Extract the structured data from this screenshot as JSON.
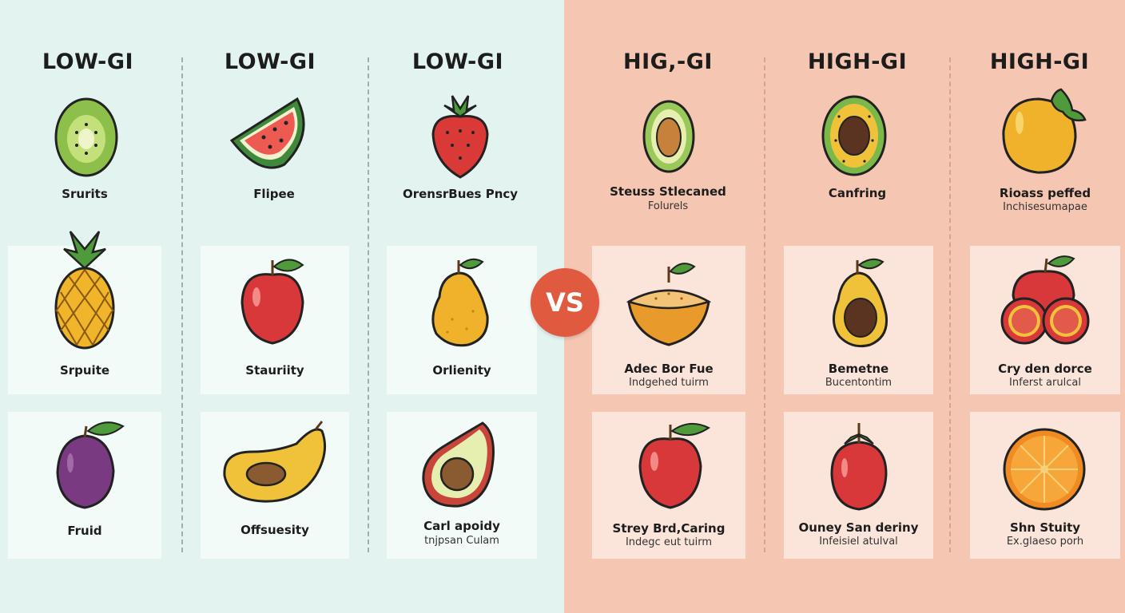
{
  "low_gi": {
    "headers": [
      "LOW-GI",
      "LOW-GI",
      "LOW-GI"
    ],
    "items": [
      {
        "label": "Srurits"
      },
      {
        "label": "Flipee"
      },
      {
        "label": "OrensrBues Pncy"
      },
      {
        "label": "Srpuite"
      },
      {
        "label": "Stauriity"
      },
      {
        "label": "Orlienity"
      },
      {
        "label": "Fruid"
      },
      {
        "label": "Offsuesity"
      },
      {
        "label": "Carl apoidy",
        "sub": "tnjpsan Culam"
      }
    ]
  },
  "high_gi": {
    "headers": [
      "HIG,-GI",
      "HIGH-GI",
      "HIGH-GI"
    ],
    "items": [
      {
        "label": "Steuss Stlecaned",
        "sub": "Folurels"
      },
      {
        "label": "Canfring"
      },
      {
        "label": "Rioass peffed",
        "sub": "Inchisesumapae"
      },
      {
        "label": "Adec Bor Fue",
        "sub": "Indgehed tuirm"
      },
      {
        "label": "Bemetne",
        "sub": "Bucentontim"
      },
      {
        "label": "Cry den dorce",
        "sub": "Inferst arulcal"
      },
      {
        "label": "Strey Brd,Caring",
        "sub": "Indegc eut tuirm"
      },
      {
        "label": "Ouney San deriny",
        "sub": "Infeisiel atulval"
      },
      {
        "label": "Shn Stuity",
        "sub": "Ex.glaeso porh"
      }
    ]
  },
  "vs_label": "VS",
  "colors": {
    "low_bg": "#e3f3ef",
    "high_bg": "#f5c6b1",
    "vs_badge": "#e05a40"
  }
}
